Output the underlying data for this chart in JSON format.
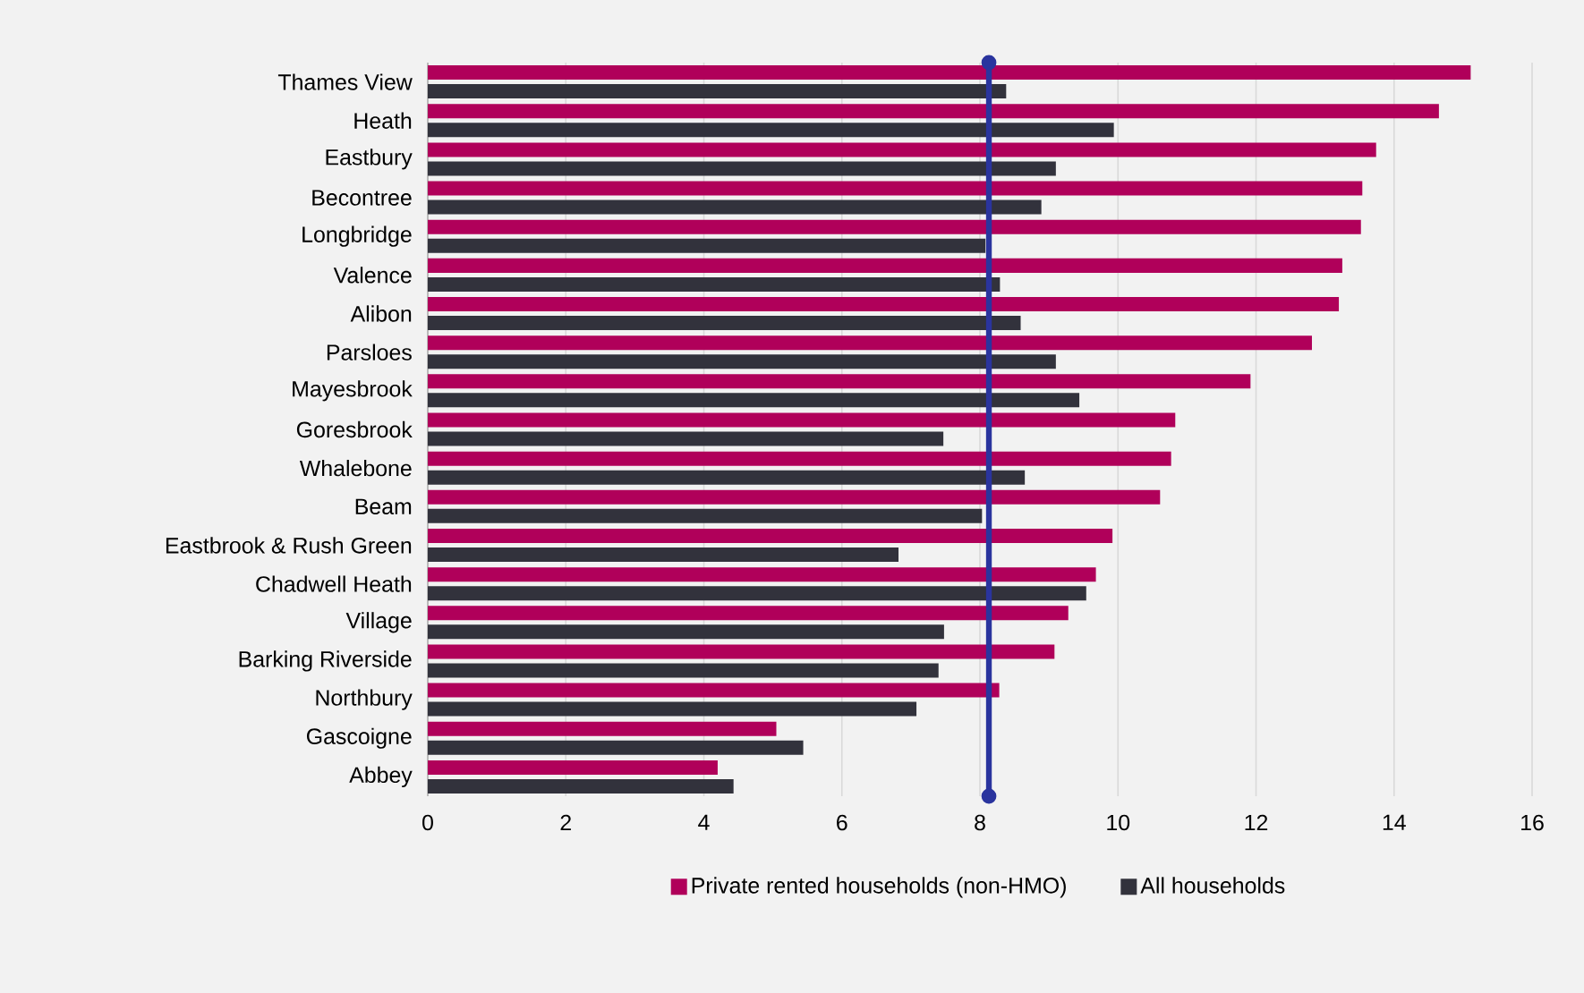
{
  "chart_data": {
    "type": "bar",
    "orientation": "horizontal",
    "categories": [
      "Thames View",
      "Heath",
      "Eastbury",
      "Becontree",
      "Longbridge",
      "Valence",
      "Alibon",
      "Parsloes",
      "Mayesbrook",
      "Goresbrook",
      "Whalebone",
      "Beam",
      "Eastbrook & Rush Green",
      "Chadwell Heath",
      "Village",
      "Barking Riverside",
      "Northbury",
      "Gascoigne",
      "Abbey"
    ],
    "series": [
      {
        "name": "Private rented households (non-HMO)",
        "color": "#b0005a",
        "values": [
          15.11,
          14.65,
          13.74,
          13.54,
          13.52,
          13.25,
          13.2,
          12.81,
          11.92,
          10.83,
          10.77,
          10.61,
          9.92,
          9.68,
          9.28,
          9.08,
          8.28,
          5.05,
          4.2
        ]
      },
      {
        "name": "All households",
        "color": "#32323c",
        "values": [
          8.38,
          9.94,
          9.1,
          8.89,
          8.08,
          8.29,
          8.59,
          9.1,
          9.44,
          7.47,
          8.65,
          8.03,
          6.82,
          9.54,
          7.48,
          7.4,
          7.08,
          5.44,
          4.43
        ]
      }
    ],
    "xlim": [
      0,
      16
    ],
    "xticks": [
      0,
      2,
      4,
      6,
      8,
      10,
      12,
      14,
      16
    ],
    "ref_lines": [
      {
        "axis": "x",
        "value": 8.13,
        "color": "#2a349e"
      }
    ],
    "grid": "x",
    "legend": "bottom"
  }
}
